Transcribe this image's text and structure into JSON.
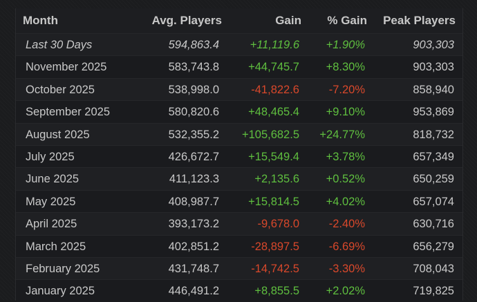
{
  "columns": {
    "month": "Month",
    "avg": "Avg. Players",
    "gain": "Gain",
    "pct": "% Gain",
    "peak": "Peak Players"
  },
  "colors": {
    "positive": "#5fbf3f",
    "negative": "#d9482b",
    "text": "#c9c9c9"
  },
  "rows": [
    {
      "month": "Last 30 Days",
      "avg": "594,863.4",
      "gain": "+11,119.6",
      "pct": "+1.90%",
      "peak": "903,303",
      "trend": "pos",
      "italic": true
    },
    {
      "month": "November 2025",
      "avg": "583,743.8",
      "gain": "+44,745.7",
      "pct": "+8.30%",
      "peak": "903,303",
      "trend": "pos",
      "italic": false
    },
    {
      "month": "October 2025",
      "avg": "538,998.0",
      "gain": "-41,822.6",
      "pct": "-7.20%",
      "peak": "858,940",
      "trend": "neg",
      "italic": false
    },
    {
      "month": "September 2025",
      "avg": "580,820.6",
      "gain": "+48,465.4",
      "pct": "+9.10%",
      "peak": "953,869",
      "trend": "pos",
      "italic": false
    },
    {
      "month": "August 2025",
      "avg": "532,355.2",
      "gain": "+105,682.5",
      "pct": "+24.77%",
      "peak": "818,732",
      "trend": "pos",
      "italic": false
    },
    {
      "month": "July 2025",
      "avg": "426,672.7",
      "gain": "+15,549.4",
      "pct": "+3.78%",
      "peak": "657,349",
      "trend": "pos",
      "italic": false
    },
    {
      "month": "June 2025",
      "avg": "411,123.3",
      "gain": "+2,135.6",
      "pct": "+0.52%",
      "peak": "650,259",
      "trend": "pos",
      "italic": false
    },
    {
      "month": "May 2025",
      "avg": "408,987.7",
      "gain": "+15,814.5",
      "pct": "+4.02%",
      "peak": "657,074",
      "trend": "pos",
      "italic": false
    },
    {
      "month": "April 2025",
      "avg": "393,173.2",
      "gain": "-9,678.0",
      "pct": "-2.40%",
      "peak": "630,716",
      "trend": "neg",
      "italic": false
    },
    {
      "month": "March 2025",
      "avg": "402,851.2",
      "gain": "-28,897.5",
      "pct": "-6.69%",
      "peak": "656,279",
      "trend": "neg",
      "italic": false
    },
    {
      "month": "February 2025",
      "avg": "431,748.7",
      "gain": "-14,742.5",
      "pct": "-3.30%",
      "peak": "708,043",
      "trend": "neg",
      "italic": false
    },
    {
      "month": "January 2025",
      "avg": "446,491.2",
      "gain": "+8,855.5",
      "pct": "+2.02%",
      "peak": "719,825",
      "trend": "pos",
      "italic": false
    }
  ]
}
